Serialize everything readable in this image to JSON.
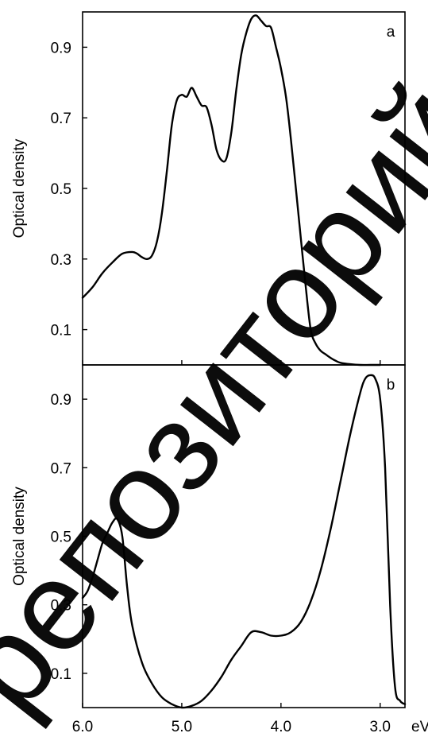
{
  "watermark": "репозиторий",
  "chart_data": [
    {
      "type": "line",
      "panel_label": "a",
      "xlabel": "",
      "ylabel": "Optical density",
      "x_unit_label": "",
      "xlim": [
        6.0,
        2.75
      ],
      "ylim": [
        0.0,
        1.0
      ],
      "y_ticks": [
        0.1,
        0.3,
        0.5,
        0.7,
        0.9
      ],
      "y_tick_labels": [
        "0.1",
        "0.3",
        "0.5",
        "0.7",
        "0.9"
      ],
      "x_ticks": [
        6.0,
        5.0,
        4.0,
        3.0
      ],
      "x_tick_labels": [],
      "series": [
        {
          "x": [
            6.0,
            5.9,
            5.8,
            5.7,
            5.6,
            5.5,
            5.45,
            5.4,
            5.35,
            5.3,
            5.25,
            5.2,
            5.15,
            5.1,
            5.05,
            5.0,
            4.95,
            4.9,
            4.85,
            4.8,
            4.75,
            4.7,
            4.65,
            4.6,
            4.55,
            4.5,
            4.45,
            4.4,
            4.35,
            4.3,
            4.25,
            4.2,
            4.15,
            4.1,
            4.05,
            4.0,
            3.95,
            3.9,
            3.85,
            3.8,
            3.75,
            3.7,
            3.65,
            3.6,
            3.55,
            3.5,
            3.45,
            3.4,
            3.3,
            3.2,
            3.1,
            3.0
          ],
          "y": [
            0.19,
            0.22,
            0.26,
            0.29,
            0.315,
            0.32,
            0.315,
            0.305,
            0.3,
            0.31,
            0.35,
            0.43,
            0.55,
            0.68,
            0.75,
            0.765,
            0.76,
            0.785,
            0.76,
            0.735,
            0.73,
            0.68,
            0.61,
            0.58,
            0.585,
            0.66,
            0.78,
            0.88,
            0.94,
            0.98,
            0.99,
            0.975,
            0.96,
            0.955,
            0.9,
            0.84,
            0.76,
            0.64,
            0.5,
            0.36,
            0.22,
            0.1,
            0.06,
            0.04,
            0.03,
            0.02,
            0.012,
            0.006,
            0.002,
            0.0,
            0.0,
            0.0
          ]
        }
      ]
    },
    {
      "type": "line",
      "panel_label": "b",
      "xlabel": "",
      "ylabel": "Optical density",
      "x_unit_label": "eV",
      "xlim": [
        6.0,
        2.75
      ],
      "ylim": [
        0.0,
        1.0
      ],
      "y_ticks": [
        0.1,
        0.3,
        0.5,
        0.7,
        0.9
      ],
      "y_tick_labels": [
        "0.1",
        "0.3",
        "0.5",
        "0.7",
        "0.9"
      ],
      "x_ticks": [
        6.0,
        5.0,
        4.0,
        3.0
      ],
      "x_tick_labels": [
        "6.0",
        "5.0",
        "4.0",
        "3.0"
      ],
      "series": [
        {
          "x": [
            6.0,
            5.95,
            5.9,
            5.85,
            5.8,
            5.75,
            5.7,
            5.65,
            5.6,
            5.55,
            5.5,
            5.4,
            5.3,
            5.2,
            5.1,
            5.0,
            4.9,
            4.8,
            4.7,
            4.6,
            4.5,
            4.4,
            4.3,
            4.2,
            4.1,
            4.0,
            3.9,
            3.8,
            3.7,
            3.6,
            3.5,
            3.4,
            3.3,
            3.2,
            3.15,
            3.1,
            3.05,
            3.0,
            2.95,
            2.9,
            2.85,
            2.8,
            2.75
          ],
          "y": [
            0.32,
            0.34,
            0.38,
            0.43,
            0.48,
            0.51,
            0.54,
            0.55,
            0.5,
            0.35,
            0.24,
            0.13,
            0.07,
            0.03,
            0.01,
            0.0,
            0.005,
            0.02,
            0.05,
            0.09,
            0.14,
            0.18,
            0.22,
            0.22,
            0.21,
            0.21,
            0.22,
            0.25,
            0.31,
            0.4,
            0.52,
            0.66,
            0.8,
            0.92,
            0.96,
            0.97,
            0.96,
            0.9,
            0.7,
            0.3,
            0.06,
            0.02,
            0.01
          ]
        }
      ]
    }
  ]
}
